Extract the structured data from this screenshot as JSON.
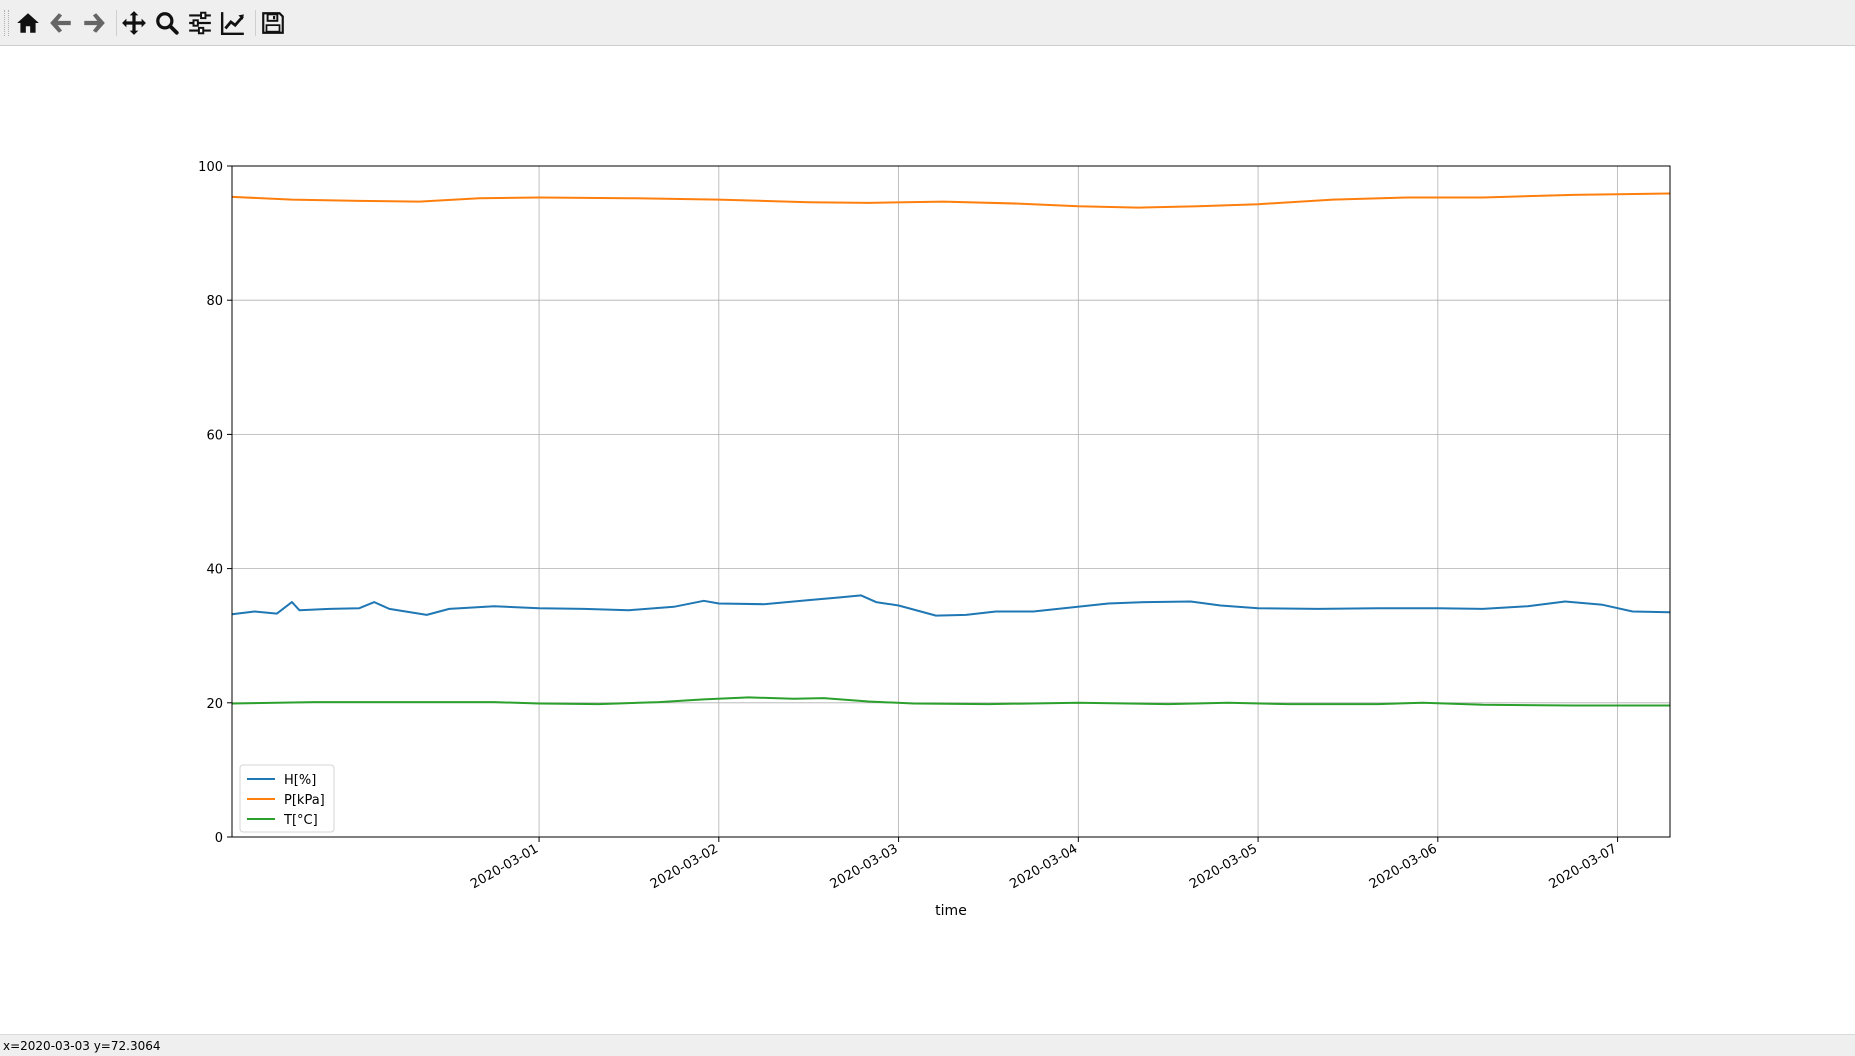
{
  "toolbar": {
    "buttons": [
      {
        "name": "home",
        "icon": "home-icon"
      },
      {
        "name": "back",
        "icon": "arrow-left-icon"
      },
      {
        "name": "forward",
        "icon": "arrow-right-icon"
      },
      {
        "name": "pan",
        "icon": "move-icon"
      },
      {
        "name": "zoom",
        "icon": "magnifier-icon"
      },
      {
        "name": "configure-subplots",
        "icon": "sliders-icon"
      },
      {
        "name": "edit-axis",
        "icon": "chart-line-icon"
      },
      {
        "name": "save",
        "icon": "floppy-disk-icon"
      }
    ]
  },
  "status": {
    "text": "x=2020-03-03 y=72.3064"
  },
  "chart_data": {
    "type": "line",
    "xlabel": "time",
    "ylabel": "",
    "ylim": [
      0,
      100
    ],
    "y_ticks": [
      0,
      20,
      40,
      60,
      80,
      100
    ],
    "xlim": [
      "2020-02-28 07:00",
      "2020-03-07 07:00"
    ],
    "x_ticks": [
      "2020-03-01",
      "2020-03-02",
      "2020-03-03",
      "2020-03-04",
      "2020-03-05",
      "2020-03-06",
      "2020-03-07"
    ],
    "grid": true,
    "legend_position": "lower left",
    "colors": {
      "H": "#1f77b4",
      "P": "#ff7f0e",
      "T": "#2ca02c"
    },
    "series": [
      {
        "name": "H[%]",
        "color": "#1f77b4",
        "points": [
          [
            "2020-02-28 07:00",
            33.2
          ],
          [
            "2020-02-28 10:00",
            33.6
          ],
          [
            "2020-02-28 13:00",
            33.3
          ],
          [
            "2020-02-28 15:00",
            35.0
          ],
          [
            "2020-02-28 16:00",
            33.8
          ],
          [
            "2020-02-28 20:00",
            34.0
          ],
          [
            "2020-02-29 00:00",
            34.1
          ],
          [
            "2020-02-29 02:00",
            35.0
          ],
          [
            "2020-02-29 04:00",
            34.0
          ],
          [
            "2020-02-29 09:00",
            33.1
          ],
          [
            "2020-02-29 12:00",
            34.0
          ],
          [
            "2020-02-29 18:00",
            34.4
          ],
          [
            "2020-03-01 00:00",
            34.1
          ],
          [
            "2020-03-01 06:00",
            34.0
          ],
          [
            "2020-03-01 12:00",
            33.8
          ],
          [
            "2020-03-01 18:00",
            34.3
          ],
          [
            "2020-03-01 22:00",
            35.2
          ],
          [
            "2020-03-02 00:00",
            34.8
          ],
          [
            "2020-03-02 06:00",
            34.7
          ],
          [
            "2020-03-02 12:00",
            35.3
          ],
          [
            "2020-03-02 16:00",
            35.7
          ],
          [
            "2020-03-02 19:00",
            36.0
          ],
          [
            "2020-03-02 21:00",
            35.0
          ],
          [
            "2020-03-03 00:00",
            34.5
          ],
          [
            "2020-03-03 05:00",
            33.0
          ],
          [
            "2020-03-03 09:00",
            33.1
          ],
          [
            "2020-03-03 13:00",
            33.6
          ],
          [
            "2020-03-03 18:00",
            33.6
          ],
          [
            "2020-03-03 23:00",
            34.2
          ],
          [
            "2020-03-04 04:00",
            34.8
          ],
          [
            "2020-03-04 09:00",
            35.0
          ],
          [
            "2020-03-04 15:00",
            35.1
          ],
          [
            "2020-03-04 19:00",
            34.5
          ],
          [
            "2020-03-05 00:00",
            34.1
          ],
          [
            "2020-03-05 08:00",
            34.0
          ],
          [
            "2020-03-05 16:00",
            34.1
          ],
          [
            "2020-03-06 00:00",
            34.1
          ],
          [
            "2020-03-06 06:00",
            34.0
          ],
          [
            "2020-03-06 12:00",
            34.4
          ],
          [
            "2020-03-06 17:00",
            35.1
          ],
          [
            "2020-03-06 22:00",
            34.6
          ],
          [
            "2020-03-07 02:00",
            33.6
          ],
          [
            "2020-03-07 07:00",
            33.5
          ]
        ]
      },
      {
        "name": "P[kPa]",
        "color": "#ff7f0e",
        "points": [
          [
            "2020-02-28 07:00",
            95.4
          ],
          [
            "2020-02-28 15:00",
            95.0
          ],
          [
            "2020-02-29 00:00",
            94.8
          ],
          [
            "2020-02-29 08:00",
            94.7
          ],
          [
            "2020-02-29 16:00",
            95.2
          ],
          [
            "2020-03-01 00:00",
            95.3
          ],
          [
            "2020-03-01 12:00",
            95.2
          ],
          [
            "2020-03-02 00:00",
            95.0
          ],
          [
            "2020-03-02 12:00",
            94.6
          ],
          [
            "2020-03-02 20:00",
            94.5
          ],
          [
            "2020-03-03 06:00",
            94.7
          ],
          [
            "2020-03-03 16:00",
            94.4
          ],
          [
            "2020-03-04 00:00",
            94.0
          ],
          [
            "2020-03-04 08:00",
            93.8
          ],
          [
            "2020-03-04 16:00",
            94.0
          ],
          [
            "2020-03-05 00:00",
            94.3
          ],
          [
            "2020-03-05 10:00",
            95.0
          ],
          [
            "2020-03-05 20:00",
            95.3
          ],
          [
            "2020-03-06 06:00",
            95.3
          ],
          [
            "2020-03-06 18:00",
            95.7
          ],
          [
            "2020-03-07 07:00",
            95.9
          ]
        ]
      },
      {
        "name": "T[°C]",
        "color": "#2ca02c",
        "points": [
          [
            "2020-02-28 07:00",
            19.9
          ],
          [
            "2020-02-28 18:00",
            20.1
          ],
          [
            "2020-02-29 06:00",
            20.1
          ],
          [
            "2020-02-29 18:00",
            20.1
          ],
          [
            "2020-03-01 00:00",
            19.9
          ],
          [
            "2020-03-01 08:00",
            19.8
          ],
          [
            "2020-03-01 16:00",
            20.1
          ],
          [
            "2020-03-01 22:00",
            20.5
          ],
          [
            "2020-03-02 04:00",
            20.8
          ],
          [
            "2020-03-02 10:00",
            20.6
          ],
          [
            "2020-03-02 14:00",
            20.7
          ],
          [
            "2020-03-02 20:00",
            20.2
          ],
          [
            "2020-03-03 02:00",
            19.9
          ],
          [
            "2020-03-03 12:00",
            19.8
          ],
          [
            "2020-03-04 00:00",
            20.0
          ],
          [
            "2020-03-04 12:00",
            19.8
          ],
          [
            "2020-03-04 20:00",
            20.0
          ],
          [
            "2020-03-05 04:00",
            19.8
          ],
          [
            "2020-03-05 16:00",
            19.8
          ],
          [
            "2020-03-05 22:00",
            20.0
          ],
          [
            "2020-03-06 06:00",
            19.7
          ],
          [
            "2020-03-06 18:00",
            19.6
          ],
          [
            "2020-03-07 07:00",
            19.6
          ]
        ]
      }
    ]
  }
}
